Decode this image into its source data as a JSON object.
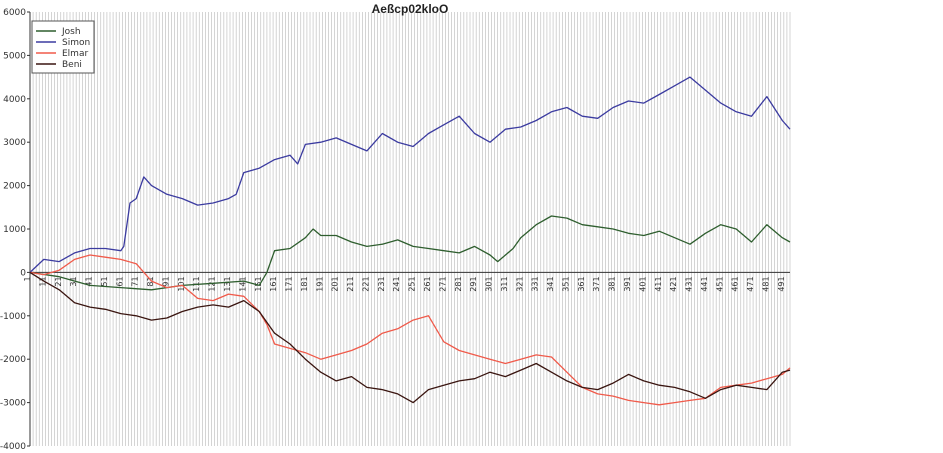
{
  "chart_data": {
    "type": "line",
    "title": "Aeßcp02kloO",
    "xlabel": "",
    "ylabel": "",
    "xlim": [
      1,
      495
    ],
    "ylim": [
      -4000,
      6000
    ],
    "y_ticks": [
      -4000,
      -3000,
      -2000,
      -1000,
      0,
      1000,
      2000,
      3000,
      4000,
      5000,
      6000
    ],
    "x_ticks": [
      1,
      11,
      21,
      31,
      41,
      51,
      61,
      71,
      81,
      91,
      101,
      111,
      121,
      131,
      141,
      151,
      161,
      171,
      181,
      191,
      201,
      211,
      221,
      231,
      241,
      251,
      261,
      271,
      281,
      291,
      301,
      311,
      321,
      331,
      341,
      351,
      361,
      371,
      381,
      391,
      401,
      411,
      421,
      431,
      441,
      451,
      461,
      471,
      481,
      491
    ],
    "grid": "vertical",
    "legend_position": "top-left",
    "series": [
      {
        "name": "Josh",
        "color": "#2e5e2e",
        "points": [
          [
            1,
            0
          ],
          [
            20,
            -100
          ],
          [
            40,
            -300
          ],
          [
            60,
            -350
          ],
          [
            80,
            -400
          ],
          [
            100,
            -300
          ],
          [
            120,
            -250
          ],
          [
            140,
            -200
          ],
          [
            150,
            -300
          ],
          [
            155,
            0
          ],
          [
            160,
            500
          ],
          [
            170,
            550
          ],
          [
            180,
            800
          ],
          [
            185,
            1000
          ],
          [
            190,
            850
          ],
          [
            200,
            850
          ],
          [
            210,
            700
          ],
          [
            220,
            600
          ],
          [
            230,
            650
          ],
          [
            240,
            750
          ],
          [
            250,
            600
          ],
          [
            260,
            550
          ],
          [
            270,
            500
          ],
          [
            280,
            450
          ],
          [
            290,
            600
          ],
          [
            300,
            400
          ],
          [
            305,
            250
          ],
          [
            315,
            550
          ],
          [
            320,
            800
          ],
          [
            330,
            1100
          ],
          [
            340,
            1300
          ],
          [
            350,
            1250
          ],
          [
            360,
            1100
          ],
          [
            370,
            1050
          ],
          [
            380,
            1000
          ],
          [
            390,
            900
          ],
          [
            400,
            850
          ],
          [
            410,
            950
          ],
          [
            420,
            800
          ],
          [
            430,
            650
          ],
          [
            440,
            900
          ],
          [
            450,
            1100
          ],
          [
            460,
            1000
          ],
          [
            470,
            700
          ],
          [
            480,
            1100
          ],
          [
            490,
            800
          ],
          [
            495,
            700
          ]
        ]
      },
      {
        "name": "Simon",
        "color": "#3b3ba0",
        "points": [
          [
            1,
            0
          ],
          [
            10,
            300
          ],
          [
            20,
            250
          ],
          [
            30,
            450
          ],
          [
            40,
            550
          ],
          [
            50,
            550
          ],
          [
            60,
            500
          ],
          [
            62,
            600
          ],
          [
            66,
            1600
          ],
          [
            70,
            1700
          ],
          [
            75,
            2200
          ],
          [
            80,
            2000
          ],
          [
            90,
            1800
          ],
          [
            100,
            1700
          ],
          [
            110,
            1550
          ],
          [
            120,
            1600
          ],
          [
            130,
            1700
          ],
          [
            135,
            1800
          ],
          [
            140,
            2300
          ],
          [
            150,
            2400
          ],
          [
            160,
            2600
          ],
          [
            170,
            2700
          ],
          [
            175,
            2500
          ],
          [
            180,
            2950
          ],
          [
            190,
            3000
          ],
          [
            200,
            3100
          ],
          [
            210,
            2950
          ],
          [
            220,
            2800
          ],
          [
            230,
            3200
          ],
          [
            240,
            3000
          ],
          [
            250,
            2900
          ],
          [
            260,
            3200
          ],
          [
            270,
            3400
          ],
          [
            280,
            3600
          ],
          [
            290,
            3200
          ],
          [
            300,
            3000
          ],
          [
            310,
            3300
          ],
          [
            320,
            3350
          ],
          [
            330,
            3500
          ],
          [
            340,
            3700
          ],
          [
            350,
            3800
          ],
          [
            360,
            3600
          ],
          [
            370,
            3550
          ],
          [
            380,
            3800
          ],
          [
            390,
            3950
          ],
          [
            400,
            3900
          ],
          [
            410,
            4100
          ],
          [
            420,
            4300
          ],
          [
            430,
            4500
          ],
          [
            440,
            4200
          ],
          [
            450,
            3900
          ],
          [
            460,
            3700
          ],
          [
            470,
            3600
          ],
          [
            480,
            4050
          ],
          [
            490,
            3500
          ],
          [
            495,
            3300
          ]
        ]
      },
      {
        "name": "Elmar",
        "color": "#f05a4a",
        "points": [
          [
            1,
            0
          ],
          [
            10,
            -50
          ],
          [
            20,
            50
          ],
          [
            30,
            300
          ],
          [
            40,
            400
          ],
          [
            50,
            350
          ],
          [
            60,
            300
          ],
          [
            70,
            200
          ],
          [
            80,
            -200
          ],
          [
            90,
            -350
          ],
          [
            100,
            -300
          ],
          [
            110,
            -600
          ],
          [
            120,
            -650
          ],
          [
            130,
            -500
          ],
          [
            140,
            -550
          ],
          [
            150,
            -900
          ],
          [
            155,
            -1200
          ],
          [
            160,
            -1650
          ],
          [
            170,
            -1750
          ],
          [
            180,
            -1850
          ],
          [
            190,
            -2000
          ],
          [
            200,
            -1900
          ],
          [
            210,
            -1800
          ],
          [
            220,
            -1650
          ],
          [
            230,
            -1400
          ],
          [
            240,
            -1300
          ],
          [
            250,
            -1100
          ],
          [
            260,
            -1000
          ],
          [
            270,
            -1600
          ],
          [
            280,
            -1800
          ],
          [
            290,
            -1900
          ],
          [
            300,
            -2000
          ],
          [
            310,
            -2100
          ],
          [
            320,
            -2000
          ],
          [
            330,
            -1900
          ],
          [
            340,
            -1950
          ],
          [
            350,
            -2300
          ],
          [
            360,
            -2650
          ],
          [
            370,
            -2800
          ],
          [
            380,
            -2850
          ],
          [
            390,
            -2950
          ],
          [
            400,
            -3000
          ],
          [
            410,
            -3050
          ],
          [
            420,
            -3000
          ],
          [
            430,
            -2950
          ],
          [
            440,
            -2900
          ],
          [
            450,
            -2650
          ],
          [
            460,
            -2600
          ],
          [
            470,
            -2550
          ],
          [
            480,
            -2450
          ],
          [
            490,
            -2350
          ],
          [
            495,
            -2200
          ]
        ]
      },
      {
        "name": "Beni",
        "color": "#3a1510",
        "points": [
          [
            1,
            0
          ],
          [
            10,
            -200
          ],
          [
            20,
            -400
          ],
          [
            30,
            -700
          ],
          [
            40,
            -800
          ],
          [
            50,
            -850
          ],
          [
            60,
            -950
          ],
          [
            70,
            -1000
          ],
          [
            80,
            -1100
          ],
          [
            90,
            -1050
          ],
          [
            100,
            -900
          ],
          [
            110,
            -800
          ],
          [
            120,
            -750
          ],
          [
            130,
            -800
          ],
          [
            140,
            -650
          ],
          [
            150,
            -900
          ],
          [
            160,
            -1400
          ],
          [
            170,
            -1650
          ],
          [
            180,
            -2000
          ],
          [
            190,
            -2300
          ],
          [
            200,
            -2500
          ],
          [
            210,
            -2400
          ],
          [
            220,
            -2650
          ],
          [
            230,
            -2700
          ],
          [
            240,
            -2800
          ],
          [
            250,
            -3000
          ],
          [
            260,
            -2700
          ],
          [
            270,
            -2600
          ],
          [
            280,
            -2500
          ],
          [
            290,
            -2450
          ],
          [
            300,
            -2300
          ],
          [
            310,
            -2400
          ],
          [
            320,
            -2250
          ],
          [
            330,
            -2100
          ],
          [
            340,
            -2300
          ],
          [
            350,
            -2500
          ],
          [
            360,
            -2650
          ],
          [
            370,
            -2700
          ],
          [
            380,
            -2550
          ],
          [
            390,
            -2350
          ],
          [
            400,
            -2500
          ],
          [
            410,
            -2600
          ],
          [
            420,
            -2650
          ],
          [
            430,
            -2750
          ],
          [
            440,
            -2900
          ],
          [
            450,
            -2700
          ],
          [
            460,
            -2600
          ],
          [
            470,
            -2650
          ],
          [
            480,
            -2700
          ],
          [
            490,
            -2300
          ],
          [
            495,
            -2250
          ]
        ]
      }
    ]
  }
}
